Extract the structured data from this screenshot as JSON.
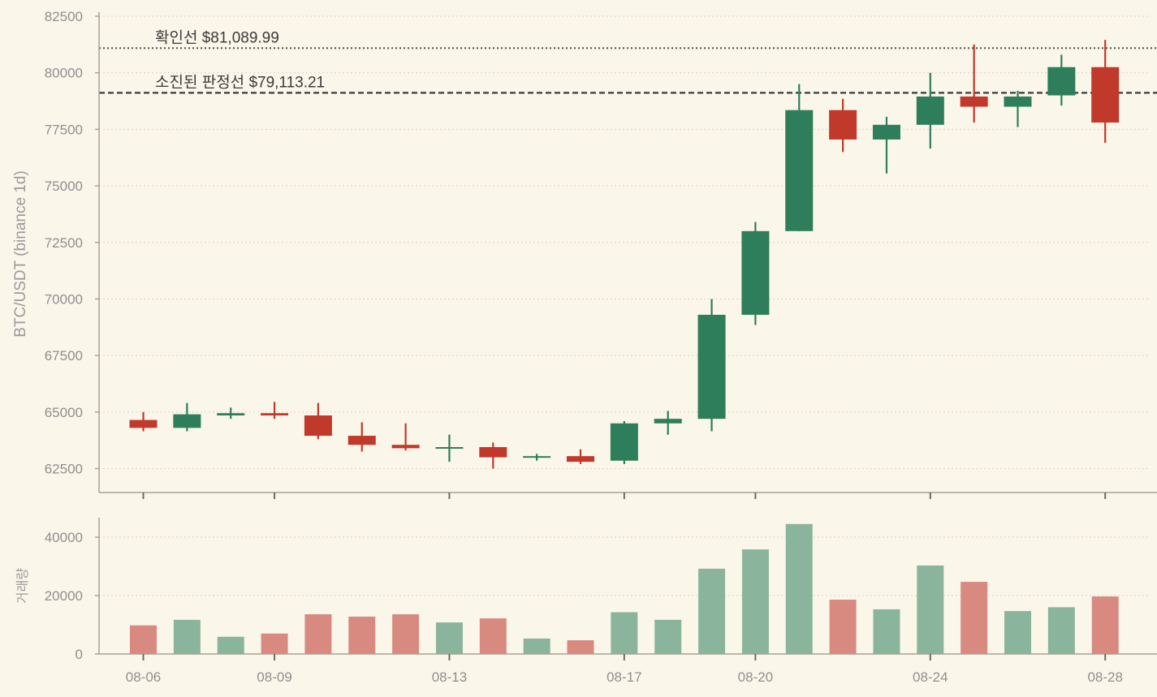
{
  "chart_data": [
    {
      "type": "candlestick",
      "ylabel": "BTC/USDT (binance 1d)",
      "ylim": [
        61500,
        82500
      ],
      "yticks": [
        62500,
        65000,
        67500,
        70000,
        72500,
        75000,
        77500,
        80000,
        82500
      ],
      "grid": "horizontal dotted",
      "colors": {
        "up": "#2e7d5b",
        "down": "#c0392b",
        "background": "#fbf6ea"
      },
      "reference_lines": [
        {
          "label": "확인선 $81,089.99",
          "value": 81089.99,
          "style": "dotted"
        },
        {
          "label": "소진된 판정선 $79,113.21",
          "value": 79113.21,
          "style": "dashed"
        }
      ],
      "candles": [
        {
          "date": "08-06",
          "open": 64650,
          "high": 65000,
          "low": 64150,
          "close": 64300
        },
        {
          "date": "08-07",
          "open": 64300,
          "high": 65400,
          "low": 64150,
          "close": 64900
        },
        {
          "date": "08-08",
          "open": 64850,
          "high": 65200,
          "low": 64700,
          "close": 64950
        },
        {
          "date": "08-09",
          "open": 64950,
          "high": 65450,
          "low": 64700,
          "close": 64850
        },
        {
          "date": "08-10",
          "open": 64850,
          "high": 65400,
          "low": 63800,
          "close": 63950
        },
        {
          "date": "08-11",
          "open": 63950,
          "high": 64550,
          "low": 63250,
          "close": 63550
        },
        {
          "date": "08-12",
          "open": 63550,
          "high": 64500,
          "low": 63300,
          "close": 63400
        },
        {
          "date": "08-13",
          "open": 63400,
          "high": 64000,
          "low": 62800,
          "close": 63450
        },
        {
          "date": "08-14",
          "open": 63450,
          "high": 63650,
          "low": 62500,
          "close": 63000
        },
        {
          "date": "08-15",
          "open": 63000,
          "high": 63150,
          "low": 62850,
          "close": 63050
        },
        {
          "date": "08-16",
          "open": 63050,
          "high": 63350,
          "low": 62700,
          "close": 62800
        },
        {
          "date": "08-17",
          "open": 62850,
          "high": 64600,
          "low": 62700,
          "close": 64500
        },
        {
          "date": "08-18",
          "open": 64500,
          "high": 65050,
          "low": 64000,
          "close": 64700
        },
        {
          "date": "08-19",
          "open": 64700,
          "high": 70000,
          "low": 64150,
          "close": 69300
        },
        {
          "date": "08-20",
          "open": 69300,
          "high": 73400,
          "low": 68850,
          "close": 73000
        },
        {
          "date": "08-21",
          "open": 73000,
          "high": 79500,
          "low": 73000,
          "close": 78350
        },
        {
          "date": "08-22",
          "open": 78350,
          "high": 78850,
          "low": 76500,
          "close": 77050
        },
        {
          "date": "08-23",
          "open": 77050,
          "high": 78050,
          "low": 75550,
          "close": 77700
        },
        {
          "date": "08-24",
          "open": 77700,
          "high": 80000,
          "low": 76650,
          "close": 78950
        },
        {
          "date": "08-25",
          "open": 78950,
          "high": 81250,
          "low": 77800,
          "close": 78500
        },
        {
          "date": "08-26",
          "open": 78500,
          "high": 79200,
          "low": 77600,
          "close": 78950
        },
        {
          "date": "08-27",
          "open": 79000,
          "high": 80800,
          "low": 78550,
          "close": 80250
        },
        {
          "date": "08-28",
          "open": 80250,
          "high": 81450,
          "low": 76900,
          "close": 77800
        }
      ],
      "xtick_labels": [
        "08-06",
        "08-09",
        "08-13",
        "08-17",
        "08-20",
        "08-24",
        "08-28"
      ]
    },
    {
      "type": "bar",
      "ylabel": "거래량",
      "ylim": [
        0,
        46500
      ],
      "yticks": [
        0,
        20000,
        40000
      ],
      "grid": "horizontal dotted",
      "colors": {
        "up": "#8ab59c",
        "down": "#d98a80"
      },
      "volumes": [
        {
          "date": "08-06",
          "value": 9800,
          "dir": "down"
        },
        {
          "date": "08-07",
          "value": 11700,
          "dir": "up"
        },
        {
          "date": "08-08",
          "value": 5900,
          "dir": "up"
        },
        {
          "date": "08-09",
          "value": 7000,
          "dir": "down"
        },
        {
          "date": "08-10",
          "value": 13600,
          "dir": "down"
        },
        {
          "date": "08-11",
          "value": 12800,
          "dir": "down"
        },
        {
          "date": "08-12",
          "value": 13600,
          "dir": "down"
        },
        {
          "date": "08-13",
          "value": 10800,
          "dir": "up"
        },
        {
          "date": "08-14",
          "value": 12200,
          "dir": "down"
        },
        {
          "date": "08-15",
          "value": 5300,
          "dir": "up"
        },
        {
          "date": "08-16",
          "value": 4700,
          "dir": "down"
        },
        {
          "date": "08-17",
          "value": 14300,
          "dir": "up"
        },
        {
          "date": "08-18",
          "value": 11700,
          "dir": "up"
        },
        {
          "date": "08-19",
          "value": 29200,
          "dir": "up"
        },
        {
          "date": "08-20",
          "value": 35800,
          "dir": "up"
        },
        {
          "date": "08-21",
          "value": 44500,
          "dir": "up"
        },
        {
          "date": "08-22",
          "value": 18600,
          "dir": "down"
        },
        {
          "date": "08-23",
          "value": 15300,
          "dir": "up"
        },
        {
          "date": "08-24",
          "value": 30300,
          "dir": "up"
        },
        {
          "date": "08-25",
          "value": 24700,
          "dir": "down"
        },
        {
          "date": "08-26",
          "value": 14700,
          "dir": "up"
        },
        {
          "date": "08-27",
          "value": 16000,
          "dir": "up"
        },
        {
          "date": "08-28",
          "value": 19700,
          "dir": "down"
        }
      ]
    }
  ]
}
